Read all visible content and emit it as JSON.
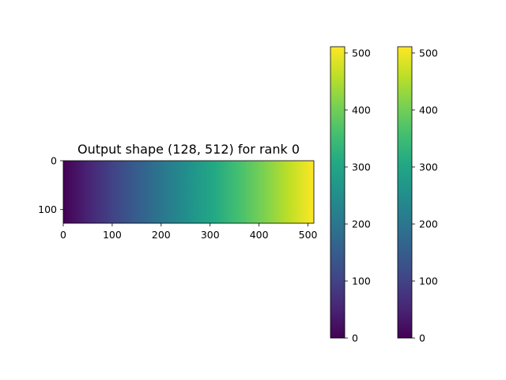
{
  "chart_data": {
    "type": "heatmap",
    "title": "Output shape (128, 512) for rank 0",
    "colormap": "viridis",
    "image": {
      "rows": 128,
      "cols": 512,
      "value_rule": "value equals column index",
      "xlim": [
        0,
        512
      ],
      "ylim": [
        128,
        0
      ],
      "xticks": [
        "0",
        "100",
        "200",
        "300",
        "400",
        "500"
      ],
      "yticks": [
        "0",
        "100"
      ]
    },
    "colorbars": [
      {
        "range": [
          0,
          511
        ],
        "ticks": [
          "0",
          "100",
          "200",
          "300",
          "400",
          "500"
        ]
      },
      {
        "range": [
          0,
          511
        ],
        "ticks": [
          "0",
          "100",
          "200",
          "300",
          "400",
          "500"
        ]
      }
    ]
  }
}
